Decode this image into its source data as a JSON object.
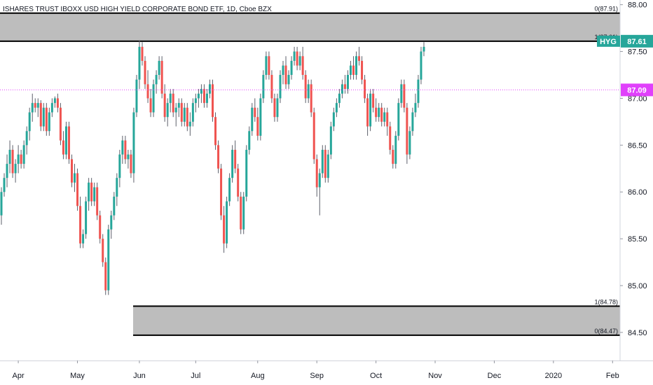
{
  "chart_data": {
    "type": "candlestick",
    "title": "ISHARES TRUST IBOXX USD HIGH YIELD CORPORATE BOND ETF, 1D, Cboe BZX",
    "symbol": "HYG",
    "ylim": [
      84.2,
      88.05
    ],
    "y_ticks": [
      "84.50",
      "85.00",
      "85.50",
      "86.00",
      "86.50",
      "87.00",
      "87.50",
      "88.00"
    ],
    "x_ticks": [
      "Apr",
      "May",
      "Jun",
      "Jul",
      "Aug",
      "Sep",
      "Oct",
      "Nov",
      "Dec",
      "2020",
      "Feb"
    ],
    "x_tick_index": [
      4,
      25,
      47,
      67,
      89,
      110,
      131,
      152,
      173,
      194,
      215
    ],
    "colors": {
      "up": "#26a69a",
      "down": "#ef5350",
      "wick": "#5d606b",
      "zone": "#bdbdbd",
      "price_badge": "#26a69a",
      "level_badge": "#e040fb"
    },
    "price_label": "87.61",
    "price_level": 87.61,
    "level_label": "87.09",
    "level_value": 87.09,
    "zones": [
      {
        "top": 87.91,
        "bottom": 87.61,
        "top_label": "0(87.91)",
        "bottom_label": "1(87.61)"
      },
      {
        "top": 84.78,
        "bottom": 84.47,
        "top_label": "1(84.78)",
        "bottom_label": "0(84.47)"
      }
    ],
    "candles": [
      [
        85.75,
        86.05,
        85.65,
        86.0
      ],
      [
        86.0,
        86.2,
        85.95,
        86.15
      ],
      [
        86.15,
        86.4,
        86.05,
        86.3
      ],
      [
        86.3,
        86.55,
        86.2,
        86.45
      ],
      [
        86.45,
        86.5,
        86.15,
        86.2
      ],
      [
        86.2,
        86.35,
        86.1,
        86.3
      ],
      [
        86.3,
        86.5,
        86.2,
        86.4
      ],
      [
        86.4,
        86.45,
        86.25,
        86.3
      ],
      [
        86.3,
        86.55,
        86.25,
        86.5
      ],
      [
        86.5,
        86.7,
        86.4,
        86.65
      ],
      [
        86.65,
        86.9,
        86.55,
        86.85
      ],
      [
        86.85,
        87.05,
        86.75,
        86.95
      ],
      [
        86.95,
        87.0,
        86.85,
        86.9
      ],
      [
        86.9,
        87.0,
        86.8,
        86.95
      ],
      [
        86.95,
        86.98,
        86.65,
        86.7
      ],
      [
        86.7,
        86.95,
        86.65,
        86.9
      ],
      [
        86.9,
        86.95,
        86.6,
        86.65
      ],
      [
        86.65,
        86.9,
        86.6,
        86.85
      ],
      [
        86.85,
        87.0,
        86.8,
        86.95
      ],
      [
        86.95,
        87.02,
        86.9,
        87.0
      ],
      [
        87.0,
        87.05,
        86.85,
        86.9
      ],
      [
        86.9,
        86.95,
        86.5,
        86.55
      ],
      [
        86.55,
        86.65,
        86.35,
        86.4
      ],
      [
        86.4,
        86.75,
        86.35,
        86.7
      ],
      [
        86.7,
        86.75,
        86.3,
        86.35
      ],
      [
        86.35,
        86.4,
        86.05,
        86.1
      ],
      [
        86.1,
        86.3,
        86.0,
        86.2
      ],
      [
        86.2,
        86.25,
        85.8,
        85.85
      ],
      [
        85.85,
        85.95,
        85.4,
        85.45
      ],
      [
        85.45,
        85.6,
        85.4,
        85.55
      ],
      [
        85.55,
        85.95,
        85.5,
        85.9
      ],
      [
        85.9,
        86.15,
        85.8,
        86.1
      ],
      [
        86.1,
        86.15,
        85.85,
        85.9
      ],
      [
        85.9,
        86.1,
        85.85,
        86.05
      ],
      [
        86.05,
        86.1,
        85.7,
        85.75
      ],
      [
        85.75,
        85.8,
        85.45,
        85.5
      ],
      [
        85.5,
        85.55,
        85.2,
        85.25
      ],
      [
        85.25,
        85.3,
        84.9,
        84.95
      ],
      [
        84.95,
        85.65,
        84.9,
        85.6
      ],
      [
        85.6,
        85.8,
        85.5,
        85.75
      ],
      [
        85.75,
        86.0,
        85.7,
        85.95
      ],
      [
        85.95,
        86.2,
        85.85,
        86.15
      ],
      [
        86.15,
        86.45,
        86.05,
        86.4
      ],
      [
        86.4,
        86.6,
        86.3,
        86.55
      ],
      [
        86.55,
        86.6,
        86.3,
        86.35
      ],
      [
        86.35,
        86.45,
        86.25,
        86.4
      ],
      [
        86.4,
        86.45,
        86.15,
        86.2
      ],
      [
        86.2,
        86.9,
        86.1,
        86.85
      ],
      [
        86.85,
        87.25,
        86.8,
        87.2
      ],
      [
        87.2,
        87.62,
        87.1,
        87.55
      ],
      [
        87.55,
        87.6,
        87.35,
        87.4
      ],
      [
        87.4,
        87.45,
        87.1,
        87.15
      ],
      [
        87.15,
        87.3,
        86.95,
        87.0
      ],
      [
        87.0,
        87.1,
        86.8,
        86.85
      ],
      [
        86.85,
        87.2,
        86.8,
        87.15
      ],
      [
        87.15,
        87.3,
        87.05,
        87.25
      ],
      [
        87.25,
        87.45,
        87.2,
        87.4
      ],
      [
        87.4,
        87.45,
        87.0,
        87.05
      ],
      [
        87.05,
        87.15,
        86.75,
        86.8
      ],
      [
        86.8,
        87.0,
        86.7,
        86.95
      ],
      [
        86.95,
        87.1,
        86.85,
        87.05
      ],
      [
        87.05,
        87.1,
        86.8,
        86.85
      ],
      [
        86.85,
        86.95,
        86.7,
        86.9
      ],
      [
        86.9,
        87.0,
        86.8,
        86.95
      ],
      [
        86.95,
        87.0,
        86.7,
        86.75
      ],
      [
        86.75,
        86.95,
        86.7,
        86.9
      ],
      [
        86.9,
        86.95,
        86.65,
        86.7
      ],
      [
        86.7,
        86.85,
        86.6,
        86.75
      ],
      [
        86.75,
        87.0,
        86.7,
        86.95
      ],
      [
        86.95,
        87.05,
        86.85,
        87.0
      ],
      [
        87.0,
        87.1,
        86.9,
        87.05
      ],
      [
        87.05,
        87.15,
        86.95,
        87.1
      ],
      [
        87.1,
        87.15,
        86.9,
        86.95
      ],
      [
        86.95,
        87.1,
        86.9,
        87.05
      ],
      [
        87.05,
        87.2,
        87.0,
        87.15
      ],
      [
        87.15,
        87.2,
        86.75,
        86.8
      ],
      [
        86.8,
        86.85,
        86.45,
        86.5
      ],
      [
        86.5,
        86.55,
        86.2,
        86.25
      ],
      [
        86.25,
        86.3,
        85.7,
        85.75
      ],
      [
        85.75,
        85.85,
        85.35,
        85.45
      ],
      [
        85.45,
        85.95,
        85.4,
        85.9
      ],
      [
        85.9,
        86.2,
        85.85,
        86.15
      ],
      [
        86.15,
        86.5,
        86.1,
        86.45
      ],
      [
        86.45,
        86.55,
        86.2,
        86.25
      ],
      [
        86.25,
        86.3,
        85.9,
        85.95
      ],
      [
        85.95,
        86.0,
        85.55,
        85.6
      ],
      [
        85.6,
        86.0,
        85.55,
        85.95
      ],
      [
        85.95,
        86.5,
        85.9,
        86.45
      ],
      [
        86.45,
        86.7,
        86.4,
        86.65
      ],
      [
        86.65,
        86.95,
        86.6,
        86.9
      ],
      [
        86.9,
        87.0,
        86.75,
        86.8
      ],
      [
        86.8,
        86.9,
        86.55,
        86.6
      ],
      [
        86.6,
        87.05,
        86.55,
        87.0
      ],
      [
        87.0,
        87.3,
        86.95,
        87.25
      ],
      [
        87.25,
        87.5,
        87.2,
        87.45
      ],
      [
        87.45,
        87.5,
        87.2,
        87.25
      ],
      [
        87.25,
        87.3,
        86.95,
        87.0
      ],
      [
        87.0,
        87.05,
        86.75,
        86.8
      ],
      [
        86.8,
        87.05,
        86.75,
        87.0
      ],
      [
        87.0,
        87.3,
        86.95,
        87.25
      ],
      [
        87.25,
        87.4,
        87.15,
        87.35
      ],
      [
        87.35,
        87.45,
        87.1,
        87.15
      ],
      [
        87.15,
        87.3,
        87.1,
        87.25
      ],
      [
        87.25,
        87.45,
        87.2,
        87.4
      ],
      [
        87.4,
        87.55,
        87.35,
        87.5
      ],
      [
        87.5,
        87.55,
        87.3,
        87.35
      ],
      [
        87.35,
        87.5,
        87.3,
        87.45
      ],
      [
        87.45,
        87.55,
        87.2,
        87.25
      ],
      [
        87.25,
        87.3,
        86.95,
        87.0
      ],
      [
        87.0,
        87.2,
        86.95,
        87.15
      ],
      [
        87.15,
        87.2,
        86.8,
        86.85
      ],
      [
        86.85,
        86.9,
        86.3,
        86.35
      ],
      [
        86.35,
        86.4,
        85.95,
        86.05
      ],
      [
        86.05,
        86.25,
        85.75,
        86.2
      ],
      [
        86.2,
        86.5,
        86.15,
        86.45
      ],
      [
        86.45,
        86.5,
        86.1,
        86.15
      ],
      [
        86.15,
        86.45,
        86.1,
        86.4
      ],
      [
        86.4,
        86.75,
        86.35,
        86.7
      ],
      [
        86.7,
        86.9,
        86.65,
        86.85
      ],
      [
        86.85,
        87.0,
        86.8,
        86.95
      ],
      [
        86.95,
        87.1,
        86.9,
        87.05
      ],
      [
        87.05,
        87.2,
        87.0,
        87.15
      ],
      [
        87.15,
        87.25,
        87.05,
        87.1
      ],
      [
        87.1,
        87.3,
        87.05,
        87.25
      ],
      [
        87.25,
        87.4,
        87.2,
        87.35
      ],
      [
        87.35,
        87.45,
        87.2,
        87.25
      ],
      [
        87.25,
        87.5,
        87.2,
        87.45
      ],
      [
        87.45,
        87.55,
        87.35,
        87.4
      ],
      [
        87.4,
        87.45,
        87.15,
        87.2
      ],
      [
        87.2,
        87.25,
        86.95,
        87.0
      ],
      [
        87.0,
        87.05,
        86.6,
        86.7
      ],
      [
        86.7,
        87.1,
        86.65,
        87.05
      ],
      [
        87.05,
        87.1,
        86.85,
        86.9
      ],
      [
        86.9,
        87.0,
        86.75,
        86.8
      ],
      [
        86.8,
        86.95,
        86.75,
        86.9
      ],
      [
        86.9,
        86.95,
        86.7,
        86.75
      ],
      [
        86.75,
        86.9,
        86.7,
        86.85
      ],
      [
        86.85,
        86.9,
        86.6,
        86.7
      ],
      [
        86.7,
        86.75,
        86.4,
        86.45
      ],
      [
        86.45,
        86.5,
        86.25,
        86.3
      ],
      [
        86.3,
        86.65,
        86.25,
        86.6
      ],
      [
        86.6,
        87.0,
        86.55,
        86.95
      ],
      [
        86.95,
        87.2,
        86.9,
        87.15
      ],
      [
        87.15,
        87.2,
        86.85,
        86.9
      ],
      [
        86.9,
        86.95,
        86.3,
        86.4
      ],
      [
        86.4,
        86.7,
        86.35,
        86.65
      ],
      [
        86.65,
        86.9,
        86.6,
        86.85
      ],
      [
        86.85,
        87.05,
        86.8,
        86.95
      ],
      [
        86.95,
        87.25,
        86.9,
        87.2
      ],
      [
        87.2,
        87.55,
        87.15,
        87.5
      ],
      [
        87.5,
        87.6,
        87.45,
        87.55
      ]
    ]
  }
}
